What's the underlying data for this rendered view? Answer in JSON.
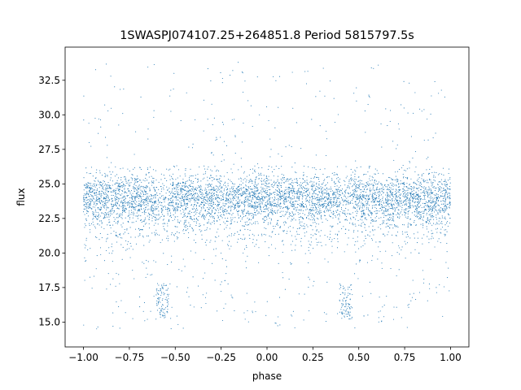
{
  "chart_data": {
    "type": "scatter",
    "title": "1SWASPJ074107.25+264851.8 Period 5815797.5s",
    "xlabel": "phase",
    "ylabel": "flux",
    "xlim": [
      -1.1,
      1.1
    ],
    "ylim": [
      13.2,
      34.9
    ],
    "x_ticks": [
      -1.0,
      -0.75,
      -0.5,
      -0.25,
      0.0,
      0.25,
      0.5,
      0.75,
      1.0
    ],
    "x_tick_labels": [
      "−1.00",
      "−0.75",
      "−0.50",
      "−0.25",
      "0.00",
      "0.25",
      "0.50",
      "0.75",
      "1.00"
    ],
    "y_ticks": [
      15.0,
      17.5,
      20.0,
      22.5,
      25.0,
      27.5,
      30.0,
      32.5
    ],
    "y_tick_labels": [
      "15.0",
      "17.5",
      "20.0",
      "22.5",
      "25.0",
      "27.5",
      "30.0",
      "32.5"
    ],
    "grid": false,
    "legend": "none",
    "point_color": "#1f77b4",
    "series": [
      {
        "phase_range": [
          -1.0,
          1.0
        ],
        "typical_flux_range": [
          20.5,
          26.0
        ],
        "median_flux": 24.0,
        "repeats_every_phase": 1.0,
        "dip_phases": [
          -0.57,
          0.43
        ],
        "dip_min_flux": 14.8,
        "scatter_flux_max": 33.8
      }
    ]
  }
}
